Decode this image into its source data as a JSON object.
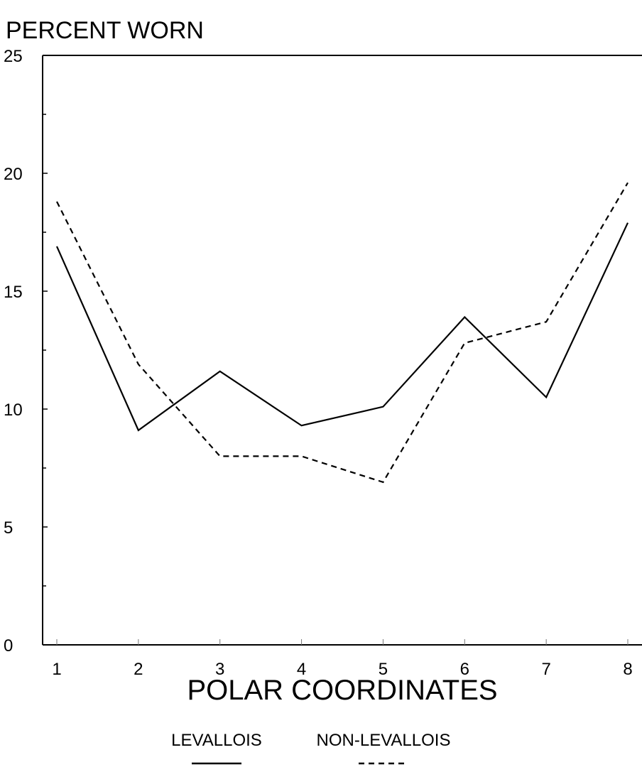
{
  "chart_data": {
    "type": "line",
    "ylabel": "PERCENT WORN",
    "xlabel": "POLAR COORDINATES",
    "x": [
      1,
      2,
      3,
      4,
      5,
      6,
      7,
      8
    ],
    "xticks": [
      "1",
      "2",
      "3",
      "4",
      "5",
      "6",
      "7",
      "8"
    ],
    "yticks": [
      "0",
      "5",
      "10",
      "15",
      "20",
      "25"
    ],
    "ylim": [
      0,
      25
    ],
    "grid": false,
    "legend_position": "bottom-center",
    "series": [
      {
        "name": "LEVALLOIS",
        "style": "solid",
        "color": "#000000",
        "values": [
          16.9,
          9.1,
          11.6,
          9.3,
          10.1,
          13.9,
          10.5,
          17.9
        ]
      },
      {
        "name": "NON-LEVALLOIS",
        "style": "dashed",
        "color": "#000000",
        "values": [
          18.8,
          11.9,
          8.0,
          8.0,
          6.9,
          12.8,
          13.7,
          19.6
        ]
      }
    ]
  }
}
